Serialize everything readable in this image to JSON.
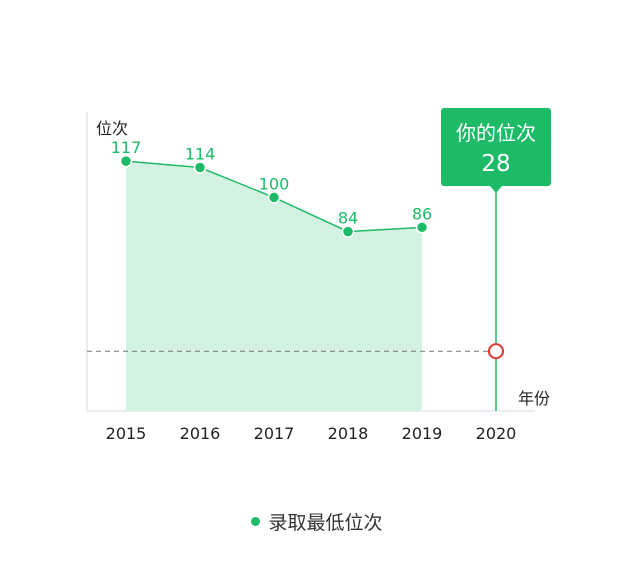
{
  "chart_data": {
    "type": "area",
    "x": [
      "2015",
      "2016",
      "2017",
      "2018",
      "2019"
    ],
    "y": [
      117,
      114,
      100,
      84,
      86
    ],
    "categories": [
      "2015",
      "2016",
      "2017",
      "2018",
      "2019",
      "2020"
    ],
    "ylabel": "位次",
    "xlabel": "年份",
    "series": [
      {
        "name": "录取最低位次",
        "values": [
          117,
          114,
          100,
          84,
          86
        ]
      }
    ],
    "marker": {
      "category": "2020",
      "label": "你的位次",
      "value": 28
    },
    "ylim": [
      0,
      140
    ],
    "grid": false,
    "legend_position": "bottom-center"
  },
  "colors": {
    "line": "#1dbb68",
    "area": "#d4f2e1",
    "marker_fill": "#1dbb68",
    "marker_text": "#ffffff",
    "marker_circle": "#d9443a",
    "dash_line": "#777777",
    "axis": "#e6e6e6",
    "tick_text": "#222222"
  }
}
